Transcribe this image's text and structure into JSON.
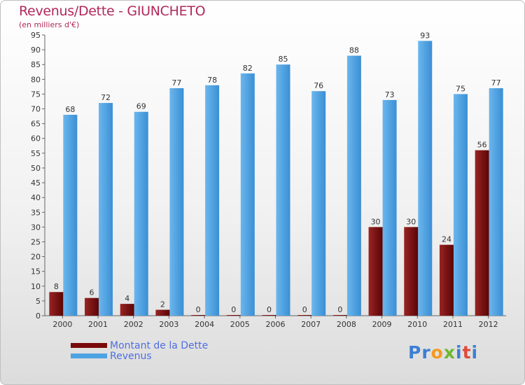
{
  "chart_data": {
    "type": "bar",
    "title": "Revenus/Dette - GIUNCHETO",
    "subtitle": "(en milliers d'€)",
    "categories": [
      "2000",
      "2001",
      "2002",
      "2003",
      "2004",
      "2005",
      "2006",
      "2007",
      "2008",
      "2009",
      "2010",
      "2011",
      "2012"
    ],
    "series": [
      {
        "name": "Montant de la Dette",
        "color": "#7a0a0a",
        "values": [
          8,
          6,
          4,
          2,
          0,
          0,
          0,
          0,
          0,
          30,
          30,
          24,
          56
        ]
      },
      {
        "name": "Revenus",
        "color": "#4ea3e3",
        "values": [
          68,
          72,
          69,
          77,
          78,
          82,
          85,
          76,
          88,
          73,
          93,
          75,
          77
        ]
      }
    ],
    "ylim": [
      0,
      95
    ],
    "ytick_step": 5,
    "grid": false
  },
  "logo": {
    "letters": [
      {
        "ch": "P",
        "color": "#3b7fd4"
      },
      {
        "ch": "r",
        "color": "#3b7fd4"
      },
      {
        "ch": "o",
        "color": "#f39a1e"
      },
      {
        "ch": "x",
        "color": "#6cb830"
      },
      {
        "ch": "i",
        "color": "#3b7fd4"
      },
      {
        "ch": "t",
        "color": "#e0483a"
      },
      {
        "ch": "i",
        "color": "#3b7fd4"
      }
    ]
  }
}
